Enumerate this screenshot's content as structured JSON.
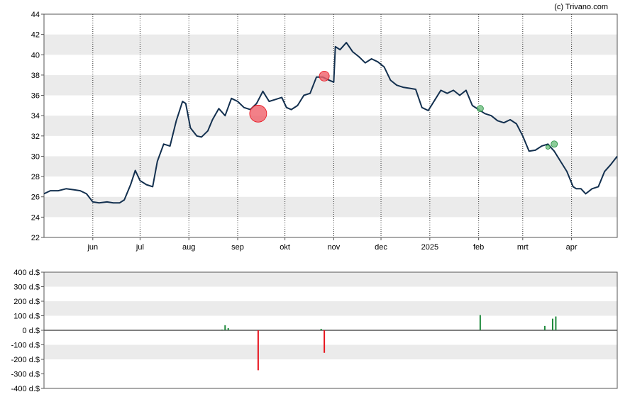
{
  "credit": "(c) Trivano.com",
  "colors": {
    "price_line": "#13304f",
    "band": "#ebebeb",
    "sell": "#e8141e",
    "buy": "#1f8a3c",
    "sell_marker": "#f0606a",
    "buy_marker": "#6fbf7f"
  },
  "chart_data": [
    {
      "type": "line",
      "series": [
        {
          "x": [
            "2024-05-01",
            "2024-05-05",
            "2024-05-10",
            "2024-05-15",
            "2024-05-20",
            "2024-05-24",
            "2024-05-28",
            "2024-06-01",
            "2024-06-05",
            "2024-06-10",
            "2024-06-14",
            "2024-06-18",
            "2024-06-21",
            "2024-06-25",
            "2024-06-28",
            "2024-07-01",
            "2024-07-05",
            "2024-07-09",
            "2024-07-12",
            "2024-07-16",
            "2024-07-20",
            "2024-07-24",
            "2024-07-28",
            "2024-07-30",
            "2024-08-02",
            "2024-08-06",
            "2024-08-09",
            "2024-08-13",
            "2024-08-16",
            "2024-08-20",
            "2024-08-24",
            "2024-08-28",
            "2024-09-01",
            "2024-09-05",
            "2024-09-09",
            "2024-09-13",
            "2024-09-17",
            "2024-09-21",
            "2024-09-25",
            "2024-09-29",
            "2024-10-02",
            "2024-10-05",
            "2024-10-09",
            "2024-10-13",
            "2024-10-17",
            "2024-10-21",
            "2024-10-25",
            "2024-10-29",
            "2024-11-01",
            "2024-11-02",
            "2024-11-05",
            "2024-11-09",
            "2024-11-13",
            "2024-11-17",
            "2024-11-21",
            "2024-11-25",
            "2024-11-29",
            "2024-12-03",
            "2024-12-07",
            "2024-12-11",
            "2024-12-15",
            "2024-12-19",
            "2024-12-23",
            "2024-12-27",
            "2024-12-31",
            "2025-01-04",
            "2025-01-08",
            "2025-01-12",
            "2025-01-16",
            "2025-01-20",
            "2025-01-24",
            "2025-01-28",
            "2025-02-01",
            "2025-02-05",
            "2025-02-09",
            "2025-02-13",
            "2025-02-17",
            "2025-02-21",
            "2025-02-25",
            "2025-03-01",
            "2025-03-05",
            "2025-03-09",
            "2025-03-13",
            "2025-03-17",
            "2025-03-21",
            "2025-03-25",
            "2025-03-29",
            "2025-04-02",
            "2025-04-04",
            "2025-04-07",
            "2025-04-10",
            "2025-04-14",
            "2025-04-18",
            "2025-04-22",
            "2025-04-26",
            "2025-04-30"
          ],
          "y": [
            26.3,
            26.6,
            26.6,
            26.8,
            26.7,
            26.6,
            26.3,
            25.5,
            25.4,
            25.5,
            25.4,
            25.4,
            25.7,
            27.2,
            28.6,
            27.6,
            27.2,
            27.0,
            29.5,
            31.2,
            31.0,
            33.5,
            35.4,
            35.2,
            32.8,
            32.0,
            31.9,
            32.5,
            33.6,
            34.7,
            34.0,
            35.7,
            35.4,
            34.8,
            34.6,
            35.2,
            36.4,
            35.4,
            35.6,
            35.8,
            34.8,
            34.6,
            35.0,
            36.0,
            36.2,
            37.8,
            37.8,
            37.5,
            37.3,
            40.8,
            40.5,
            41.2,
            40.3,
            39.8,
            39.2,
            39.6,
            39.3,
            38.8,
            37.5,
            37.0,
            36.8,
            36.7,
            36.6,
            34.8,
            34.5,
            35.5,
            36.5,
            36.2,
            36.5,
            36.0,
            36.5,
            35.0,
            34.6,
            34.2,
            34.0,
            33.5,
            33.3,
            33.6,
            33.2,
            32.0,
            30.5,
            30.6,
            31.0,
            31.2,
            30.5,
            29.5,
            28.5,
            27.0,
            26.8,
            26.8,
            26.3,
            26.8,
            27.0,
            28.5,
            29.2,
            30.0
          ]
        }
      ],
      "ylim": [
        22,
        44
      ],
      "yticks": [
        "22",
        "24",
        "26",
        "28",
        "30",
        "32",
        "34",
        "36",
        "38",
        "40",
        "42",
        "44"
      ],
      "month_labels": [
        {
          "label": "jun",
          "date": "2024-06-01"
        },
        {
          "label": "jul",
          "date": "2024-07-01"
        },
        {
          "label": "aug",
          "date": "2024-08-01"
        },
        {
          "label": "sep",
          "date": "2024-09-01"
        },
        {
          "label": "okt",
          "date": "2024-10-01"
        },
        {
          "label": "nov",
          "date": "2024-11-01"
        },
        {
          "label": "dec",
          "date": "2024-12-01"
        },
        {
          "label": "2025",
          "date": "2025-01-01"
        },
        {
          "label": "feb",
          "date": "2025-02-01"
        },
        {
          "label": "mrt",
          "date": "2025-03-01"
        },
        {
          "label": "apr",
          "date": "2025-04-01"
        }
      ],
      "xlim": [
        "2024-05-01",
        "2025-04-30"
      ],
      "grid": true,
      "markers": [
        {
          "date": "2024-09-14",
          "price": 34.2,
          "kind": "sell",
          "size": "large"
        },
        {
          "date": "2024-10-26",
          "price": 37.9,
          "kind": "sell",
          "size": "medium"
        },
        {
          "date": "2025-02-02",
          "price": 34.7,
          "kind": "buy",
          "size": "small"
        },
        {
          "date": "2025-03-17",
          "price": 30.9,
          "kind": "buy",
          "size": "tiny"
        },
        {
          "date": "2025-03-21",
          "price": 31.2,
          "kind": "buy",
          "size": "small"
        }
      ]
    },
    {
      "type": "bar",
      "series": [
        {
          "x": [
            "2024-08-22",
            "2024-08-24",
            "2024-08-26",
            "2024-09-14",
            "2024-10-24",
            "2024-10-26",
            "2025-02-02",
            "2025-03-15",
            "2025-03-20",
            "2025-03-22"
          ],
          "y": [
            5,
            35,
            15,
            -275,
            10,
            -155,
            105,
            30,
            80,
            95
          ]
        }
      ],
      "ylim": [
        -400,
        400
      ],
      "yticks": [
        "-400 d.$",
        "-300 d.$",
        "-200 d.$",
        "-100 d.$",
        "0 d.$",
        "100 d.$",
        "200 d.$",
        "300 d.$",
        "400 d.$"
      ],
      "grid": true
    }
  ]
}
